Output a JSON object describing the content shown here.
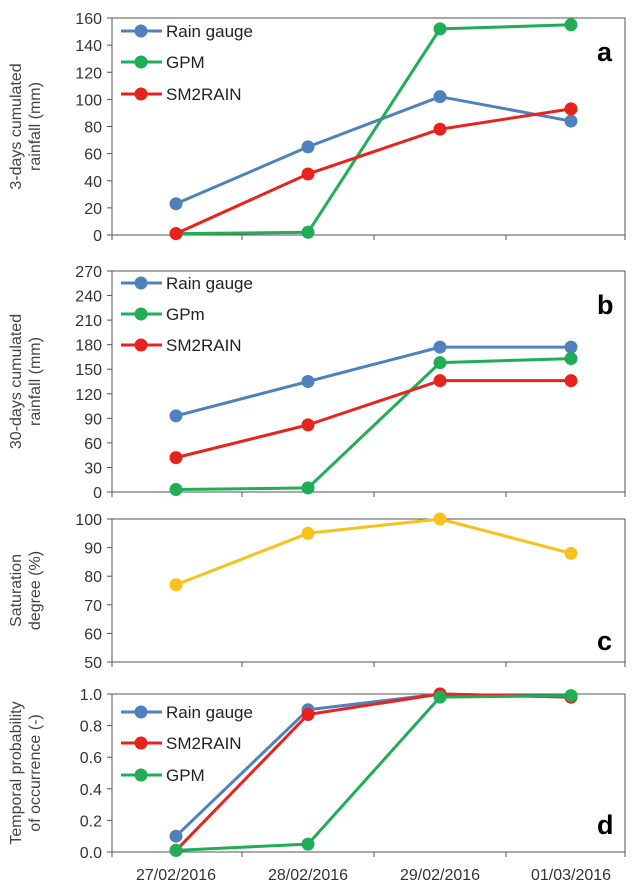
{
  "chart_data": [
    {
      "type": "line",
      "panel_label": "a",
      "ylabel": [
        "3-days cumulated",
        "rainfall (mm)"
      ],
      "ylim": [
        0,
        160
      ],
      "yticks": [
        0,
        20,
        40,
        60,
        80,
        100,
        120,
        140,
        160
      ],
      "categories": [
        "27/02/2016",
        "28/02/2016",
        "29/02/2016",
        "01/03/2016"
      ],
      "legend_position": "top-left",
      "series": [
        {
          "name": "Rain gauge",
          "color": "#4F81BD",
          "values": [
            23,
            65,
            102,
            84
          ]
        },
        {
          "name": "GPM",
          "color": "#1FAD55",
          "values": [
            1,
            2,
            152,
            155
          ]
        },
        {
          "name": "SM2RAIN",
          "color": "#E8231D",
          "values": [
            1,
            45,
            78,
            93
          ]
        }
      ]
    },
    {
      "type": "line",
      "panel_label": "b",
      "ylabel": [
        "30-days cumulated",
        "rainfall (mm)"
      ],
      "ylim": [
        0,
        270
      ],
      "yticks": [
        0,
        30,
        60,
        90,
        120,
        150,
        180,
        210,
        240,
        270
      ],
      "categories": [
        "27/02/2016",
        "28/02/2016",
        "29/02/2016",
        "01/03/2016"
      ],
      "legend_position": "top-left",
      "series": [
        {
          "name": "Rain gauge",
          "color": "#4F81BD",
          "values": [
            93,
            135,
            177,
            177
          ]
        },
        {
          "name": "GPm",
          "color": "#1FAD55",
          "values": [
            3,
            5,
            158,
            163
          ]
        },
        {
          "name": "SM2RAIN",
          "color": "#E8231D",
          "values": [
            42,
            82,
            136,
            136
          ]
        }
      ]
    },
    {
      "type": "line",
      "panel_label": "c",
      "ylabel": [
        "Saturation",
        "degree (%)"
      ],
      "ylim": [
        50,
        100
      ],
      "yticks": [
        50,
        60,
        70,
        80,
        90,
        100
      ],
      "categories": [
        "27/02/2016",
        "28/02/2016",
        "29/02/2016",
        "01/03/2016"
      ],
      "legend_position": "none",
      "series": [
        {
          "color": "#F9C11B",
          "values": [
            77,
            95,
            100,
            88
          ]
        }
      ]
    },
    {
      "type": "line",
      "panel_label": "d",
      "ylabel": [
        "Temporal probability",
        "of occurrence (-)"
      ],
      "ylim": [
        0,
        1
      ],
      "yticks": [
        "0.0",
        "0.2",
        "0.4",
        "0.6",
        "0.8",
        "1.0"
      ],
      "categories": [
        "27/02/2016",
        "28/02/2016",
        "29/02/2016",
        "01/03/2016"
      ],
      "legend_position": "top-left",
      "series": [
        {
          "name": "Rain gauge",
          "color": "#4F81BD",
          "values": [
            0.1,
            0.9,
            1.0,
            0.98
          ]
        },
        {
          "name": "SM2RAIN",
          "color": "#E8231D",
          "values": [
            0.01,
            0.87,
            1.0,
            0.98
          ]
        },
        {
          "name": "GPM",
          "color": "#1FAD55",
          "values": [
            0.01,
            0.05,
            0.98,
            0.99
          ]
        }
      ]
    }
  ]
}
